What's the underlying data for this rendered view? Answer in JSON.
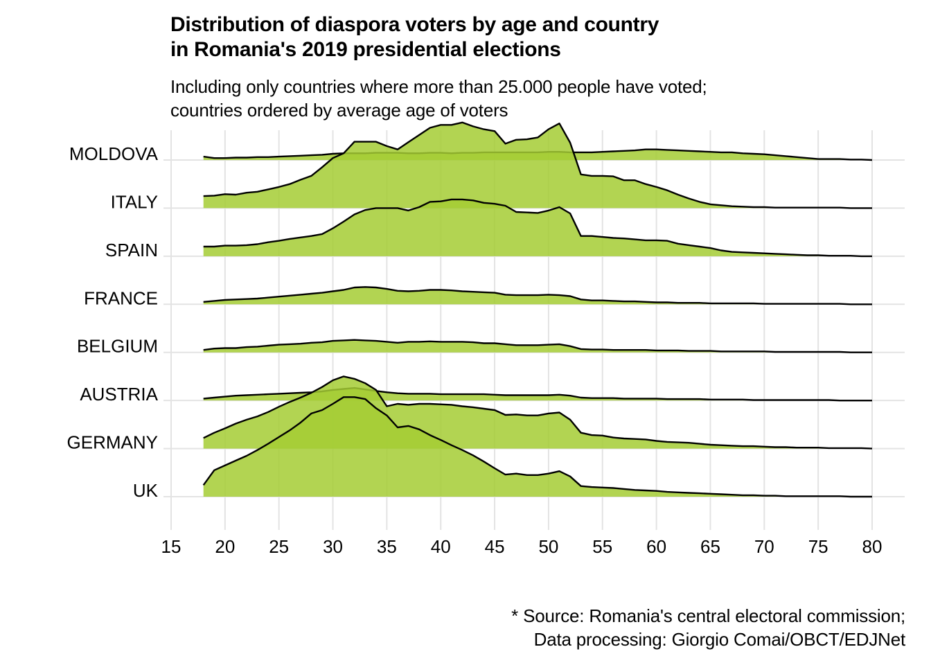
{
  "chart_data": {
    "type": "area",
    "subtype": "ridgeline",
    "title": "Distribution of diaspora voters by age and country\nin Romania's 2019 presidential elections",
    "title_lines": [
      "Distribution of diaspora voters by age and country",
      "in Romania's 2019 presidential elections"
    ],
    "subtitle_lines": [
      "Including only countries where more than 25.000 people have voted;",
      "countries ordered by average age of voters"
    ],
    "caption_lines": [
      "* Source: Romania's central electoral commission;",
      "Data processing: Giorgio Comai/OBCT/EDJNet"
    ],
    "xlabel": "",
    "ylabel": "",
    "xlim": [
      15,
      80
    ],
    "x_ticks": [
      15,
      20,
      25,
      30,
      35,
      40,
      45,
      50,
      55,
      60,
      65,
      70,
      75,
      80
    ],
    "grid": true,
    "legend": "none",
    "fill_color": "#A5CC34",
    "fill_opacity": 0.85,
    "line_color": "#000000",
    "value_unit": "relative density (1 = one row spacing)",
    "x": [
      18,
      19,
      20,
      21,
      22,
      23,
      24,
      25,
      26,
      27,
      28,
      29,
      30,
      31,
      32,
      33,
      34,
      35,
      36,
      37,
      38,
      39,
      40,
      41,
      42,
      43,
      44,
      45,
      46,
      47,
      48,
      49,
      50,
      51,
      52,
      53,
      54,
      55,
      56,
      57,
      58,
      59,
      60,
      61,
      62,
      63,
      64,
      65,
      66,
      67,
      68,
      69,
      70,
      71,
      72,
      73,
      74,
      75,
      76,
      77,
      78,
      79,
      80
    ],
    "series": [
      {
        "name": "MOLDOVA",
        "values": [
          0.07,
          0.04,
          0.04,
          0.05,
          0.05,
          0.06,
          0.06,
          0.07,
          0.08,
          0.09,
          0.1,
          0.11,
          0.13,
          0.14,
          0.14,
          0.14,
          0.15,
          0.15,
          0.15,
          0.14,
          0.14,
          0.15,
          0.15,
          0.14,
          0.15,
          0.15,
          0.16,
          0.16,
          0.16,
          0.16,
          0.16,
          0.16,
          0.17,
          0.17,
          0.16,
          0.16,
          0.16,
          0.17,
          0.18,
          0.19,
          0.2,
          0.22,
          0.22,
          0.21,
          0.2,
          0.19,
          0.18,
          0.17,
          0.16,
          0.16,
          0.14,
          0.13,
          0.12,
          0.1,
          0.08,
          0.06,
          0.04,
          0.02,
          0.02,
          0.02,
          0.01,
          0.01,
          0.0
        ]
      },
      {
        "name": "ITALY",
        "values": [
          0.25,
          0.26,
          0.29,
          0.28,
          0.32,
          0.34,
          0.39,
          0.44,
          0.5,
          0.59,
          0.67,
          0.85,
          1.04,
          1.14,
          1.38,
          1.38,
          1.38,
          1.29,
          1.22,
          1.37,
          1.52,
          1.67,
          1.73,
          1.73,
          1.78,
          1.7,
          1.64,
          1.6,
          1.34,
          1.42,
          1.43,
          1.47,
          1.64,
          1.76,
          1.36,
          0.7,
          0.67,
          0.67,
          0.66,
          0.58,
          0.58,
          0.5,
          0.44,
          0.37,
          0.28,
          0.2,
          0.13,
          0.08,
          0.06,
          0.04,
          0.03,
          0.02,
          0.02,
          0.01,
          0.01,
          0.01,
          0.01,
          0.01,
          0.01,
          0.01,
          0.0,
          0.0,
          0.0
        ]
      },
      {
        "name": "SPAIN",
        "values": [
          0.2,
          0.2,
          0.22,
          0.22,
          0.23,
          0.25,
          0.29,
          0.32,
          0.36,
          0.39,
          0.42,
          0.46,
          0.58,
          0.72,
          0.87,
          0.96,
          1.0,
          1.0,
          1.0,
          0.95,
          1.02,
          1.13,
          1.14,
          1.18,
          1.18,
          1.16,
          1.11,
          1.09,
          1.05,
          0.92,
          0.91,
          0.9,
          0.95,
          1.02,
          0.89,
          0.42,
          0.42,
          0.4,
          0.38,
          0.37,
          0.35,
          0.33,
          0.33,
          0.32,
          0.26,
          0.23,
          0.2,
          0.17,
          0.12,
          0.09,
          0.08,
          0.07,
          0.06,
          0.05,
          0.04,
          0.03,
          0.02,
          0.02,
          0.01,
          0.01,
          0.01,
          0.0,
          0.0
        ]
      },
      {
        "name": "FRANCE",
        "values": [
          0.05,
          0.07,
          0.09,
          0.1,
          0.11,
          0.12,
          0.14,
          0.16,
          0.18,
          0.2,
          0.22,
          0.24,
          0.27,
          0.3,
          0.35,
          0.36,
          0.35,
          0.32,
          0.28,
          0.27,
          0.28,
          0.3,
          0.3,
          0.29,
          0.27,
          0.26,
          0.25,
          0.24,
          0.2,
          0.19,
          0.19,
          0.19,
          0.2,
          0.19,
          0.17,
          0.1,
          0.08,
          0.08,
          0.07,
          0.06,
          0.06,
          0.05,
          0.04,
          0.04,
          0.03,
          0.03,
          0.03,
          0.02,
          0.02,
          0.02,
          0.02,
          0.02,
          0.01,
          0.01,
          0.01,
          0.01,
          0.01,
          0.01,
          0.01,
          0.01,
          0.0,
          0.0,
          0.0
        ]
      },
      {
        "name": "BELGIUM",
        "values": [
          0.05,
          0.08,
          0.09,
          0.09,
          0.11,
          0.12,
          0.14,
          0.16,
          0.17,
          0.18,
          0.2,
          0.21,
          0.24,
          0.25,
          0.26,
          0.25,
          0.24,
          0.22,
          0.2,
          0.22,
          0.22,
          0.23,
          0.22,
          0.22,
          0.22,
          0.21,
          0.19,
          0.19,
          0.17,
          0.15,
          0.15,
          0.15,
          0.16,
          0.17,
          0.13,
          0.07,
          0.06,
          0.06,
          0.05,
          0.05,
          0.05,
          0.05,
          0.04,
          0.04,
          0.04,
          0.03,
          0.03,
          0.03,
          0.02,
          0.02,
          0.02,
          0.02,
          0.02,
          0.01,
          0.01,
          0.01,
          0.01,
          0.01,
          0.01,
          0.01,
          0.0,
          0.0,
          0.0
        ]
      },
      {
        "name": "AUSTRIA",
        "values": [
          0.04,
          0.06,
          0.08,
          0.1,
          0.11,
          0.12,
          0.13,
          0.14,
          0.15,
          0.16,
          0.17,
          0.19,
          0.22,
          0.24,
          0.26,
          0.23,
          0.2,
          0.17,
          0.15,
          0.14,
          0.14,
          0.14,
          0.13,
          0.13,
          0.13,
          0.13,
          0.13,
          0.12,
          0.11,
          0.11,
          0.11,
          0.11,
          0.11,
          0.12,
          0.1,
          0.06,
          0.05,
          0.05,
          0.05,
          0.04,
          0.04,
          0.04,
          0.04,
          0.03,
          0.03,
          0.03,
          0.03,
          0.02,
          0.02,
          0.02,
          0.02,
          0.01,
          0.01,
          0.01,
          0.01,
          0.01,
          0.01,
          0.01,
          0.01,
          0.0,
          0.0,
          0.0,
          0.0
        ]
      },
      {
        "name": "GERMANY",
        "values": [
          0.22,
          0.33,
          0.42,
          0.52,
          0.6,
          0.67,
          0.76,
          0.87,
          0.97,
          1.06,
          1.16,
          1.28,
          1.42,
          1.5,
          1.45,
          1.36,
          1.22,
          0.88,
          0.93,
          0.91,
          0.93,
          0.93,
          0.92,
          0.91,
          0.88,
          0.86,
          0.83,
          0.8,
          0.7,
          0.71,
          0.69,
          0.69,
          0.73,
          0.75,
          0.6,
          0.33,
          0.28,
          0.27,
          0.23,
          0.21,
          0.2,
          0.19,
          0.16,
          0.14,
          0.13,
          0.12,
          0.1,
          0.08,
          0.07,
          0.06,
          0.05,
          0.05,
          0.04,
          0.03,
          0.03,
          0.02,
          0.02,
          0.02,
          0.01,
          0.01,
          0.01,
          0.01,
          0.0
        ]
      },
      {
        "name": "UK",
        "values": [
          0.24,
          0.55,
          0.65,
          0.75,
          0.85,
          0.97,
          1.1,
          1.24,
          1.38,
          1.54,
          1.73,
          1.8,
          1.93,
          2.07,
          2.07,
          2.03,
          1.84,
          1.69,
          1.44,
          1.47,
          1.4,
          1.28,
          1.18,
          1.07,
          0.97,
          0.86,
          0.73,
          0.59,
          0.46,
          0.48,
          0.45,
          0.45,
          0.48,
          0.53,
          0.42,
          0.22,
          0.2,
          0.19,
          0.18,
          0.16,
          0.14,
          0.13,
          0.12,
          0.1,
          0.09,
          0.08,
          0.07,
          0.06,
          0.05,
          0.04,
          0.03,
          0.03,
          0.02,
          0.02,
          0.01,
          0.01,
          0.01,
          0.01,
          0.01,
          0.01,
          0.0,
          0.0,
          0.0
        ]
      }
    ]
  }
}
